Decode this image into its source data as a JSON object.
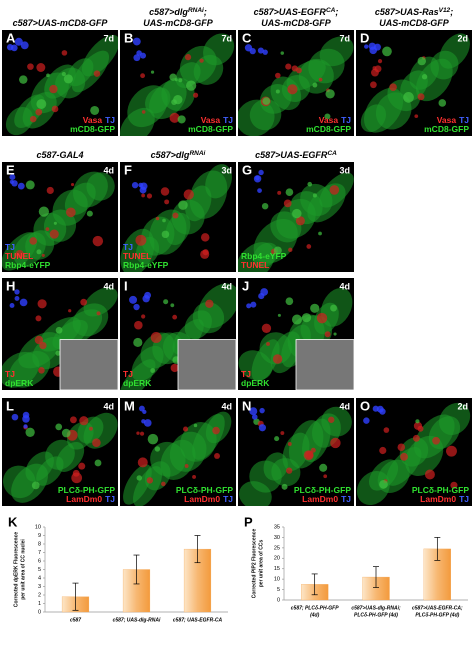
{
  "panels": [
    {
      "letter": "A",
      "days": "7d",
      "title": [
        [
          "c587>UAS-mCD8-GFP"
        ]
      ],
      "align": "right",
      "labels": [
        [
          {
            "t": "Vasa",
            "c": "#ff3030"
          },
          {
            "t": "TJ",
            "c": "#4060ff"
          }
        ],
        [
          {
            "t": "mCD8-GFP",
            "c": "#30e030"
          }
        ]
      ]
    },
    {
      "letter": "B",
      "days": "7d",
      "title": [
        [
          "c587>dlg",
          "RNAi",
          ";"
        ],
        [
          "UAS-mCD8-GFP"
        ]
      ],
      "align": "right",
      "labels": [
        [
          {
            "t": "Vasa",
            "c": "#ff3030"
          },
          {
            "t": "TJ",
            "c": "#4060ff"
          }
        ],
        [
          {
            "t": "mCD8-GFP",
            "c": "#30e030"
          }
        ]
      ]
    },
    {
      "letter": "C",
      "days": "7d",
      "title": [
        [
          "c587>UAS-EGFR",
          "CA",
          ";"
        ],
        [
          "UAS-mCD8-GFP"
        ]
      ],
      "align": "right",
      "labels": [
        [
          {
            "t": "Vasa",
            "c": "#ff3030"
          },
          {
            "t": "TJ",
            "c": "#4060ff"
          }
        ],
        [
          {
            "t": "mCD8-GFP",
            "c": "#30e030"
          }
        ]
      ]
    },
    {
      "letter": "D",
      "days": "2d",
      "title": [
        [
          "c587>UAS-Ras",
          "V12",
          ";"
        ],
        [
          "UAS-mCD8-GFP"
        ]
      ],
      "align": "right",
      "labels": [
        [
          {
            "t": "Vasa",
            "c": "#ff3030"
          },
          {
            "t": "TJ",
            "c": "#4060ff"
          }
        ],
        [
          {
            "t": "mCD8-GFP",
            "c": "#30e030"
          }
        ]
      ]
    },
    {
      "letter": "E",
      "days": "4d",
      "title": [
        [
          "c587-GAL4"
        ]
      ],
      "align": "left",
      "labels": [
        [
          {
            "t": "TJ",
            "c": "#4060ff"
          }
        ],
        [
          {
            "t": "TUNEL",
            "c": "#ff3030"
          }
        ],
        [
          {
            "t": "Rbp4-eYFP",
            "c": "#30e030"
          }
        ]
      ]
    },
    {
      "letter": "F",
      "days": "3d",
      "title": [
        [
          "c587>dlg",
          "RNAi"
        ]
      ],
      "align": "left",
      "labels": [
        [
          {
            "t": "TJ",
            "c": "#4060ff"
          }
        ],
        [
          {
            "t": "TUNEL",
            "c": "#ff3030"
          }
        ],
        [
          {
            "t": "Rbp4-eYFP",
            "c": "#30e030"
          }
        ]
      ]
    },
    {
      "letter": "G",
      "days": "3d",
      "title": [
        [
          "c587>UAS-EGFR",
          "CA"
        ]
      ],
      "align": "left",
      "labels": [
        [
          {
            "t": "Rbp4-eYFP",
            "c": "#30e030"
          }
        ],
        [
          {
            "t": "TUNEL",
            "c": "#ff3030"
          }
        ]
      ]
    },
    {
      "letter": "H",
      "days": "4d",
      "align": "left",
      "inset": true,
      "labels": [
        [
          {
            "t": "TJ",
            "c": "#ff3030"
          }
        ],
        [
          {
            "t": "dpERK",
            "c": "#30e030"
          }
        ]
      ]
    },
    {
      "letter": "I",
      "days": "4d",
      "align": "left",
      "inset": true,
      "labels": [
        [
          {
            "t": "TJ",
            "c": "#ff3030"
          }
        ],
        [
          {
            "t": "dpERK",
            "c": "#30e030"
          }
        ]
      ]
    },
    {
      "letter": "J",
      "days": "4d",
      "align": "left",
      "inset": true,
      "labels": [
        [
          {
            "t": "TJ",
            "c": "#ff3030"
          }
        ],
        [
          {
            "t": "dpERK",
            "c": "#30e030"
          }
        ]
      ]
    },
    {
      "letter": "L",
      "days": "4d",
      "align": "right",
      "labels": [
        [
          {
            "t": "PLCδ-PH-GFP",
            "c": "#30e030"
          }
        ],
        [
          {
            "t": "LamDm0",
            "c": "#ff3030"
          },
          {
            "t": "TJ",
            "c": "#4060ff"
          }
        ]
      ]
    },
    {
      "letter": "M",
      "days": "4d",
      "align": "right",
      "labels": [
        [
          {
            "t": "PLCδ-PH-GFP",
            "c": "#30e030"
          }
        ],
        [
          {
            "t": "LamDm0",
            "c": "#ff3030"
          },
          {
            "t": "TJ",
            "c": "#4060ff"
          }
        ]
      ]
    },
    {
      "letter": "N",
      "days": "4d",
      "align": "right",
      "labels": [
        [
          {
            "t": "PLCδ-PH-GFP",
            "c": "#30e030"
          }
        ],
        [
          {
            "t": "LamDm0",
            "c": "#ff3030"
          },
          {
            "t": "TJ",
            "c": "#4060ff"
          }
        ]
      ]
    },
    {
      "letter": "O",
      "days": "2d",
      "align": "right",
      "labels": [
        [
          {
            "t": "PLCδ-PH-GFP",
            "c": "#30e030"
          }
        ],
        [
          {
            "t": "LamDm0",
            "c": "#ff3030"
          },
          {
            "t": "TJ",
            "c": "#4060ff"
          }
        ]
      ]
    }
  ],
  "chart_data": [
    {
      "type": "bar",
      "letter": "K",
      "ylabel": [
        "Corrected dpERK Fluorescence",
        "per unit area of CC nuclei"
      ],
      "categories": [
        [
          "c587"
        ],
        [
          "c587; UAS-dlg-RNAi"
        ],
        [
          "c587; UAS-EGFR-CA"
        ]
      ],
      "values": [
        1.8,
        5.0,
        7.4
      ],
      "errors": [
        1.6,
        1.7,
        1.6
      ],
      "color": "#f5a550",
      "ylim": [
        0,
        10
      ],
      "yticks": [
        0,
        1,
        2,
        3,
        4,
        5,
        6,
        7,
        8,
        9,
        10
      ]
    },
    {
      "type": "bar",
      "letter": "P",
      "ylabel": [
        "Corrected PIP2 Fluorescence",
        "per unit area of CCs"
      ],
      "categories": [
        [
          "c587; PLCδ-PH-GFP",
          "(4d)"
        ],
        [
          "c587>UAS-dlg-RNAi;",
          "PLCδ-PH-GFP (4d)"
        ],
        [
          "c587>UAS-EGFR-CA;",
          "PLCδ-PH-GFP (4d)"
        ]
      ],
      "values": [
        7.5,
        11,
        24.5
      ],
      "errors": [
        5,
        5,
        5.5
      ],
      "color": "#f5a550",
      "ylim": [
        0,
        35
      ],
      "yticks": [
        0,
        5,
        10,
        15,
        20,
        25,
        30,
        35
      ]
    }
  ]
}
